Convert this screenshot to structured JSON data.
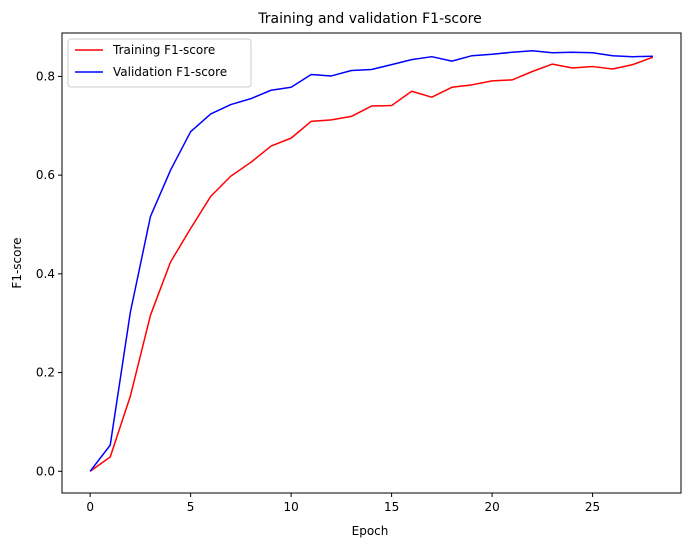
{
  "chart_data": {
    "type": "line",
    "title": "Training and validation F1-score",
    "xlabel": "Epoch",
    "ylabel": "F1-score",
    "xlim": [
      -1.4,
      29.4
    ],
    "ylim": [
      -0.044,
      0.888
    ],
    "xticks": [
      0,
      5,
      10,
      15,
      20,
      25
    ],
    "xtick_labels": [
      "0",
      "5",
      "10",
      "15",
      "20",
      "25"
    ],
    "yticks": [
      0.0,
      0.2,
      0.4,
      0.6,
      0.8
    ],
    "ytick_labels": [
      "0.0",
      "0.2",
      "0.4",
      "0.6",
      "0.8"
    ],
    "grid": false,
    "legend_position": "top-left",
    "x": [
      0,
      1,
      2,
      3,
      4,
      5,
      6,
      7,
      8,
      9,
      10,
      11,
      12,
      13,
      14,
      15,
      16,
      17,
      18,
      19,
      20,
      21,
      22,
      23,
      24,
      25,
      26,
      27,
      28
    ],
    "series": [
      {
        "name": "Training F1-score",
        "color": "#ff0000",
        "values": [
          0.0,
          0.029,
          0.152,
          0.316,
          0.424,
          0.492,
          0.557,
          0.598,
          0.626,
          0.659,
          0.675,
          0.709,
          0.712,
          0.719,
          0.74,
          0.741,
          0.77,
          0.758,
          0.778,
          0.783,
          0.791,
          0.793,
          0.81,
          0.825,
          0.817,
          0.82,
          0.815,
          0.824,
          0.839
        ]
      },
      {
        "name": "Validation F1-score",
        "color": "#0000ff",
        "values": [
          0.0,
          0.053,
          0.322,
          0.516,
          0.61,
          0.688,
          0.724,
          0.743,
          0.755,
          0.772,
          0.778,
          0.804,
          0.801,
          0.812,
          0.814,
          0.824,
          0.834,
          0.84,
          0.831,
          0.842,
          0.845,
          0.849,
          0.852,
          0.848,
          0.849,
          0.848,
          0.842,
          0.84,
          0.841
        ]
      }
    ]
  }
}
